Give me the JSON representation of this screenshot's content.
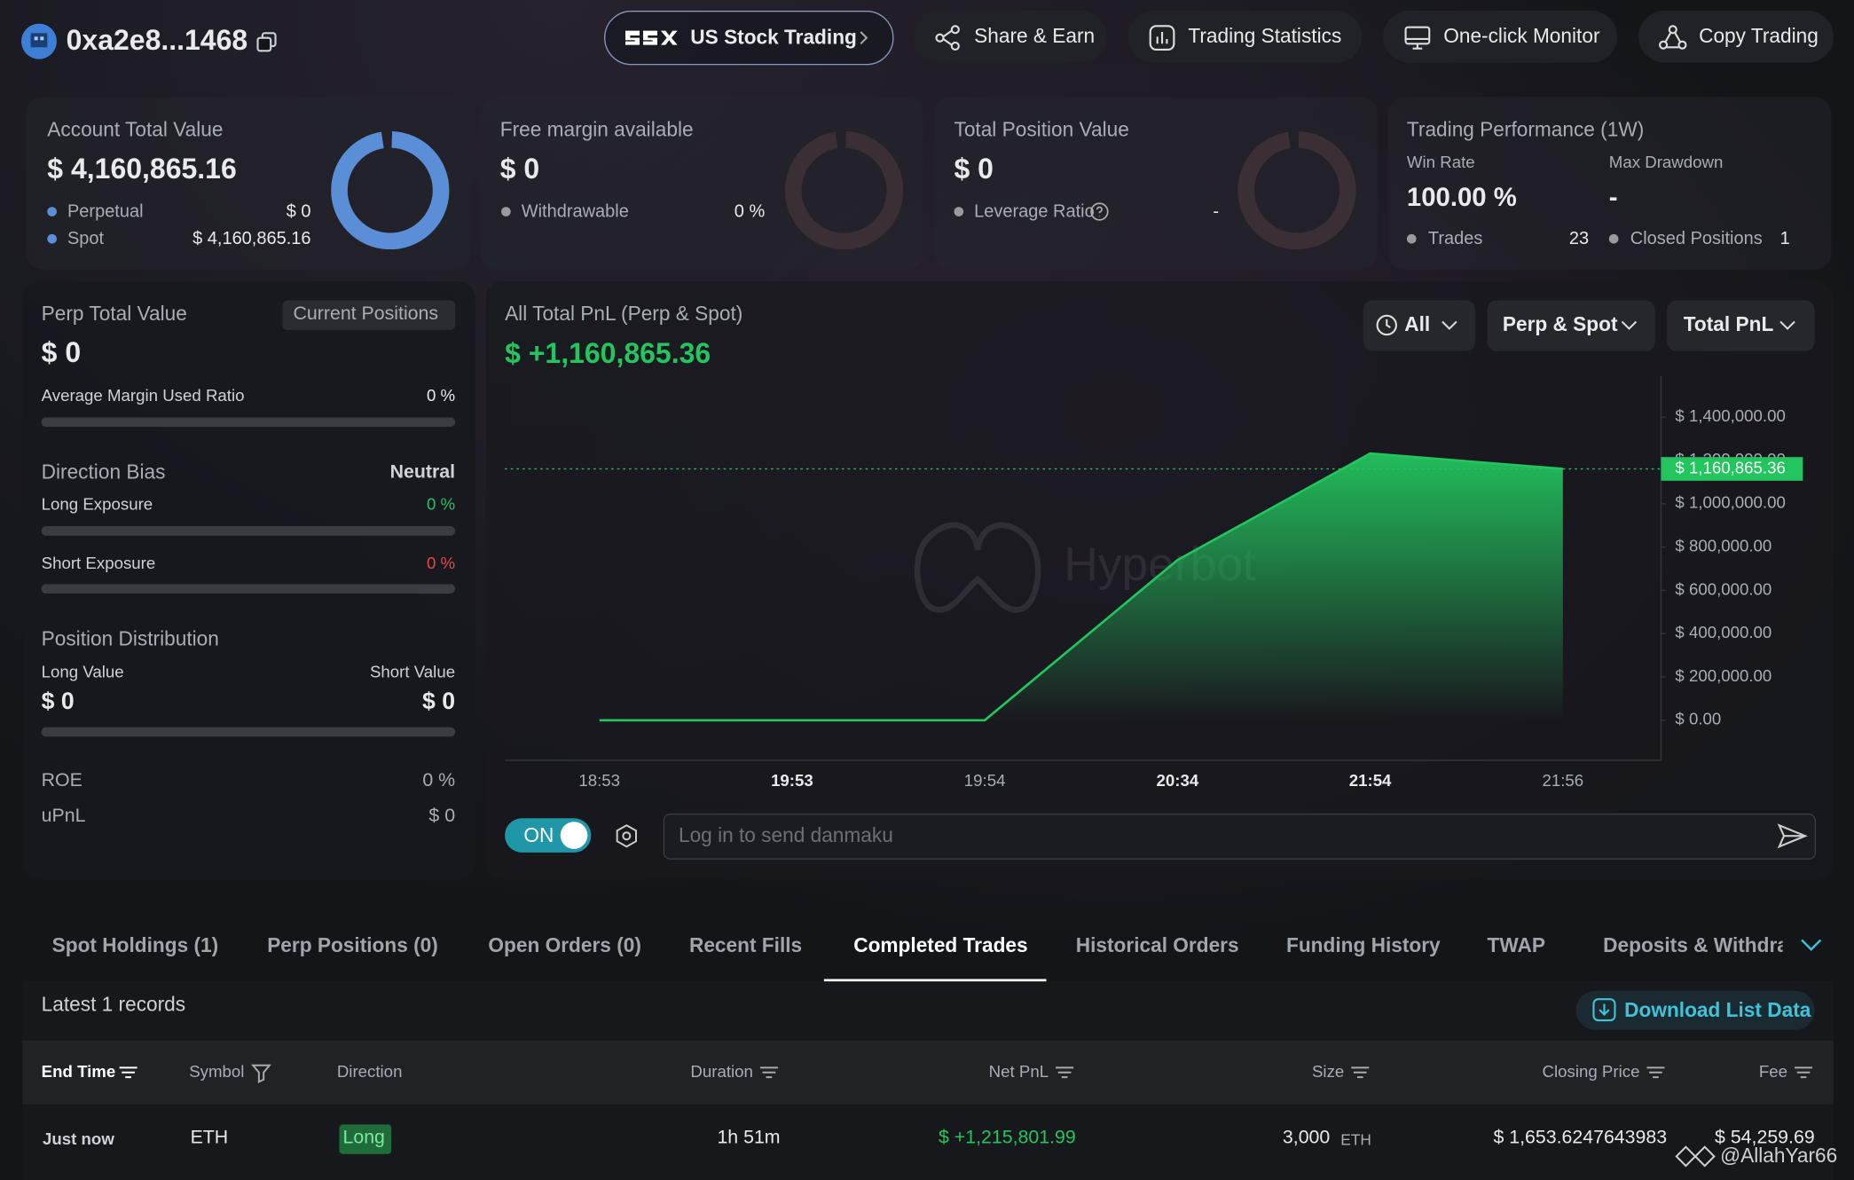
{
  "header": {
    "account": "0xa2e8...1468",
    "nav": [
      "US Stock Trading",
      "Share & Earn",
      "Trading Statistics",
      "One-click Monitor",
      "Copy Trading"
    ]
  },
  "summary": {
    "account_total": {
      "title": "Account Total Value",
      "value": "$ 4,160,865.16",
      "rows": [
        [
          "Perpetual",
          "$ 0"
        ],
        [
          "Spot",
          "$ 4,160,865.16"
        ]
      ]
    },
    "free_margin": {
      "title": "Free margin available",
      "value": "$ 0",
      "rows": [
        [
          "Withdrawable",
          "0 %"
        ]
      ]
    },
    "total_position": {
      "title": "Total Position Value",
      "value": "$ 0",
      "rows": [
        [
          "Leverage Ratio",
          "-"
        ]
      ]
    },
    "performance": {
      "title": "Trading Performance (1W)",
      "win_rate_label": "Win Rate",
      "win_rate": "100.00 %",
      "max_drawdown_label": "Max Drawdown",
      "max_drawdown": "-",
      "rows": [
        [
          "Trades",
          "23"
        ],
        [
          "Closed Positions",
          "1"
        ]
      ]
    }
  },
  "perp": {
    "title": "Perp Total Value",
    "button": "Current Positions",
    "value": "$ 0",
    "margin_label": "Average Margin Used Ratio",
    "margin": "0 %",
    "bias_label": "Direction Bias",
    "bias": "Neutral",
    "long_label": "Long Exposure",
    "long": "0 %",
    "short_label": "Short Exposure",
    "short": "0 %",
    "dist_label": "Position Distribution",
    "long_value_label": "Long Value",
    "long_value": "$ 0",
    "short_value_label": "Short Value",
    "short_value": "$ 0",
    "roe_label": "ROE",
    "roe": "0 %",
    "upnl_label": "uPnL",
    "upnl": "$ 0"
  },
  "chart_data": {
    "type": "area",
    "title": "All Total PnL (Perp & Spot)",
    "subtitle": "$ +1,160,865.36",
    "filters": [
      "All",
      "Perp & Spot",
      "Total PnL"
    ],
    "watermark": "Hyperbot",
    "color": "#22c55e",
    "categories": [
      "18:53",
      "19:53",
      "19:54",
      "20:34",
      "21:54",
      "21:56"
    ],
    "values": [
      0,
      0,
      0,
      740000,
      1232000,
      1160865.36
    ],
    "value_labels": [
      null,
      null,
      null,
      null,
      null,
      "$ 1,160,865.36"
    ],
    "ylim": [
      -185000,
      1590000
    ],
    "yticks": [
      {
        "value": 0,
        "label": "$ 0.00"
      },
      {
        "value": 200000,
        "label": "$ 200,000.00"
      },
      {
        "value": 400000,
        "label": "$ 400,000.00"
      },
      {
        "value": 600000,
        "label": "$ 600,000.00"
      },
      {
        "value": 800000,
        "label": "$ 800,000.00"
      },
      {
        "value": 1000000,
        "label": "$ 1,000,000.00"
      },
      {
        "value": 1200000,
        "label": "$ 1,200,000.00"
      },
      {
        "value": 1400000,
        "label": "$ 1,400,000.00"
      }
    ],
    "grid": false,
    "toggle": "ON",
    "input_placeholder": "Log in to send danmaku"
  },
  "table": {
    "tabs": [
      "Spot Holdings (1)",
      "Perp Positions (0)",
      "Open Orders (0)",
      "Recent Fills",
      "Completed Trades",
      "Historical Orders",
      "Funding History",
      "TWAP",
      "Deposits & Withdrawals"
    ],
    "records": "Latest 1 records",
    "download": "Download List Data",
    "columns": [
      "End Time",
      "Symbol",
      "Direction",
      "Duration",
      "Net PnL",
      "Size",
      "Closing Price",
      "Fee"
    ],
    "rows": [
      {
        "end_time": "Just now",
        "symbol": "ETH",
        "direction": "Long",
        "duration": "1h 51m",
        "net_pnl": "$ +1,215,801.99",
        "size": "3,000",
        "size_unit": "ETH",
        "closing_price": "$ 1,653.6247643983",
        "fee": "$ 54,259.69"
      }
    ]
  },
  "footer": {
    "watermark": "@AllahYar66"
  }
}
